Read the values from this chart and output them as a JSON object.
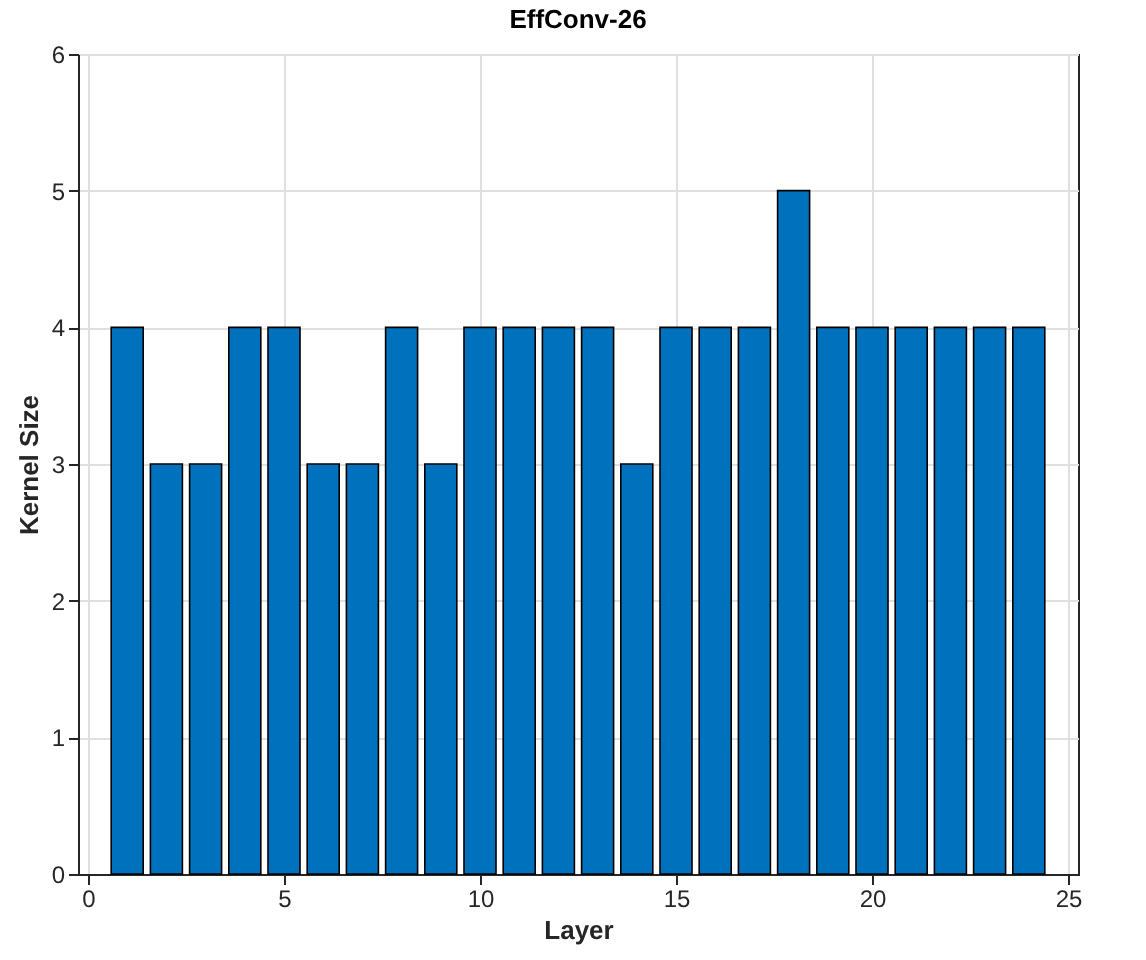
{
  "chart_data": {
    "type": "bar",
    "title": "EffConv-26",
    "xlabel": "Layer",
    "ylabel": "Kernel Size",
    "x": [
      1,
      2,
      3,
      4,
      5,
      6,
      7,
      8,
      9,
      10,
      11,
      12,
      13,
      14,
      15,
      16,
      17,
      18,
      19,
      20,
      21,
      22,
      23,
      24
    ],
    "values": [
      4,
      3,
      3,
      4,
      4,
      3,
      3,
      4,
      3,
      4,
      4,
      4,
      4,
      3,
      4,
      4,
      4,
      5,
      4,
      4,
      4,
      4,
      4,
      4
    ],
    "color": "#0072bd",
    "xlim": [
      0,
      25
    ],
    "xticks": [
      0,
      5,
      10,
      15,
      20,
      25
    ],
    "ylim": [
      0,
      6
    ],
    "yticks": [
      0,
      1,
      2,
      3,
      4,
      5,
      6
    ],
    "grid": true
  }
}
